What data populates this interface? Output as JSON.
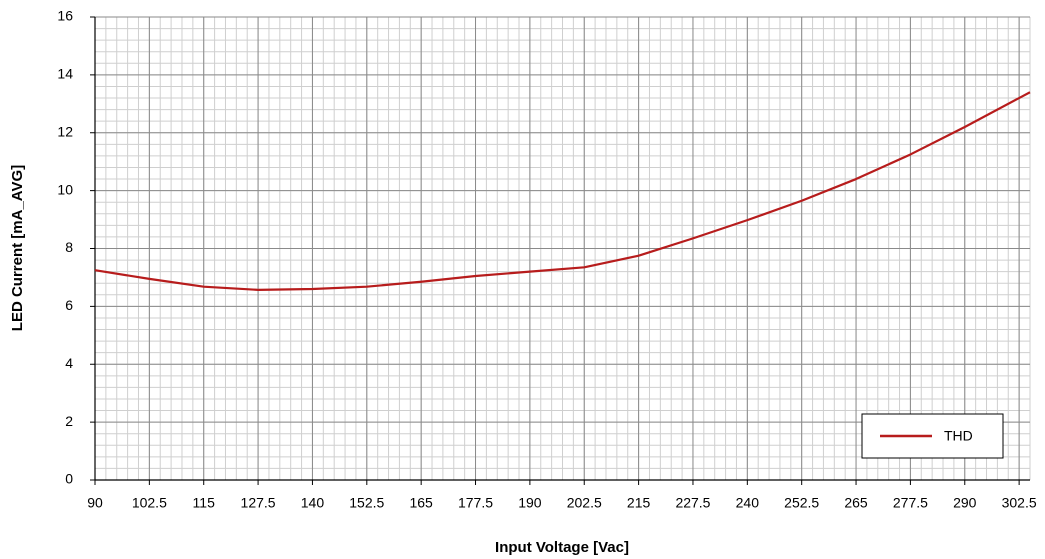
{
  "chart_data": {
    "type": "line",
    "x_label": "Input Voltage [Vac]",
    "y_label": "LED Current [mA_AVG]",
    "x": [
      90,
      102.5,
      115,
      127.5,
      140,
      152.5,
      165,
      177.5,
      190,
      202.5,
      215,
      227.5,
      240,
      252.5,
      265,
      277.5,
      290,
      305
    ],
    "series": [
      {
        "name": "THD",
        "color": "#b71c1c",
        "values": [
          7.25,
          6.95,
          6.68,
          6.57,
          6.6,
          6.68,
          6.85,
          7.05,
          7.2,
          7.35,
          7.75,
          8.35,
          8.98,
          9.65,
          10.4,
          11.25,
          12.2,
          13.4
        ]
      }
    ],
    "xlim": [
      90,
      305
    ],
    "xticks": [
      90,
      102.5,
      115,
      127.5,
      140,
      152.5,
      165,
      177.5,
      190,
      202.5,
      215,
      227.5,
      240,
      252.5,
      265,
      277.5,
      290,
      302.5
    ],
    "ylim": [
      0,
      16
    ],
    "yticks": [
      0,
      2,
      4,
      6,
      8,
      10,
      12,
      14,
      16
    ],
    "grid": true,
    "minor_divisions": 5,
    "legend": "lower right"
  }
}
